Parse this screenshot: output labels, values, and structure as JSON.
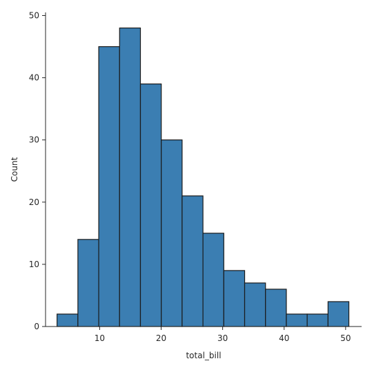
{
  "chart_data": {
    "type": "bar",
    "subtype": "histogram",
    "xlabel": "total_bill",
    "ylabel": "Count",
    "xlim": [
      1.2,
      52.6
    ],
    "ylim": [
      0,
      50.5
    ],
    "xticks": [
      10,
      20,
      30,
      40,
      50
    ],
    "yticks": [
      0,
      10,
      20,
      30,
      40,
      50
    ],
    "bin_edges": [
      3.07,
      6.46,
      9.85,
      13.24,
      16.63,
      20.02,
      23.41,
      26.8,
      30.19,
      33.58,
      36.97,
      40.36,
      43.75,
      47.14,
      50.53
    ],
    "counts": [
      2,
      14,
      45,
      48,
      39,
      30,
      21,
      15,
      9,
      7,
      6,
      2,
      2,
      4
    ],
    "grid": false,
    "bar_color": "#3b7eb2",
    "edge_color": "#1a1a1a"
  }
}
